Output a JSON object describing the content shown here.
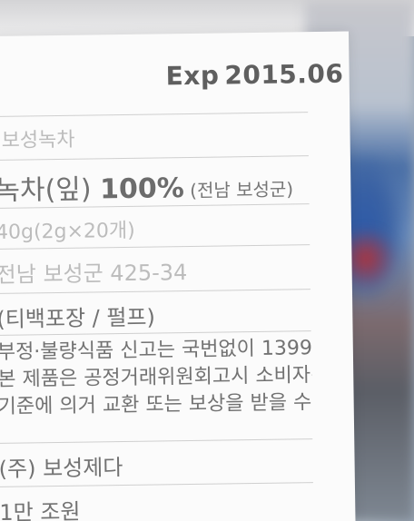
{
  "label": {
    "exp_prefix": "Exp",
    "exp_value": "2015.06",
    "rows": [
      {
        "text": "보성녹차"
      },
      {
        "text_a": "녹차(잎) ",
        "text_pct": "100%",
        "text_b": " (전남 보성군)"
      },
      {
        "text": "40g(2g×20개)"
      },
      {
        "text": "전남 보성군 425-34"
      },
      {
        "text": "(티백포장 / 펄프)"
      },
      {
        "line1": "부정·불량식품 신고는 국번없이 1399",
        "line2": "본 제품은 공정거래위원회고시 소비자분쟁해결",
        "line3": "기준에 의거 교환 또는 보상을 받을 수 있습니다."
      },
      {
        "text": "(주) 보성제다"
      },
      {
        "text": "1만 조원"
      }
    ]
  }
}
